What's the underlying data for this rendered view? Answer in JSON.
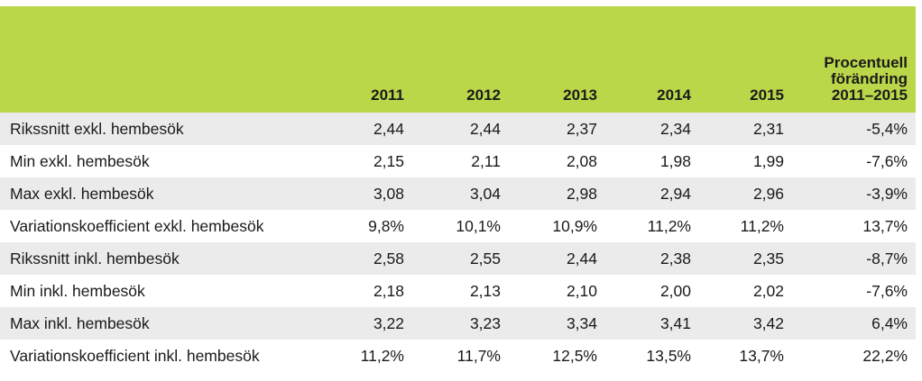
{
  "table": {
    "headers": [
      "",
      "2011",
      "2012",
      "2013",
      "2014",
      "2015"
    ],
    "change_header": [
      "Procentuell",
      "förändring",
      "2011–2015"
    ],
    "rows": [
      [
        "Rikssnitt exkl. hembesök",
        "2,44",
        "2,44",
        "2,37",
        "2,34",
        "2,31",
        "-5,4%"
      ],
      [
        "Min exkl. hembesök",
        "2,15",
        "2,11",
        "2,08",
        "1,98",
        "1,99",
        "-7,6%"
      ],
      [
        "Max exkl. hembesök",
        "3,08",
        "3,04",
        "2,98",
        "2,94",
        "2,96",
        "-3,9%"
      ],
      [
        "Variationskoefficient exkl. hembesök",
        "9,8%",
        "10,1%",
        "10,9%",
        "11,2%",
        "11,2%",
        "13,7%"
      ],
      [
        "Rikssnitt inkl. hembesök",
        "2,58",
        "2,55",
        "2,44",
        "2,38",
        "2,35",
        "-8,7%"
      ],
      [
        "Min  inkl. hembesök",
        "2,18",
        "2,13",
        "2,10",
        "2,00",
        "2,02",
        "-7,6%"
      ],
      [
        "Max inkl. hembesök",
        "3,22",
        "3,23",
        "3,34",
        "3,41",
        "3,42",
        "6,4%"
      ],
      [
        "Variationskoefficient inkl. hembesök",
        "11,2%",
        "11,7%",
        "12,5%",
        "13,5%",
        "13,7%",
        "22,2%"
      ]
    ]
  },
  "colors": {
    "header_bg": "#bad74a",
    "row_shaded": "#ebebeb",
    "row_white": "#ffffff"
  }
}
